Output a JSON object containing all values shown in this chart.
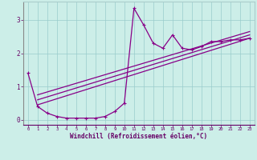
{
  "xlabel": "Windchill (Refroidissement éolien,°C)",
  "background_color": "#cceee8",
  "grid_color": "#99cccc",
  "line_color": "#880088",
  "spine_color": "#666699",
  "x_data": [
    0,
    1,
    2,
    3,
    4,
    5,
    6,
    7,
    8,
    9,
    10,
    11,
    12,
    13,
    14,
    15,
    16,
    17,
    18,
    19,
    20,
    21,
    22,
    23
  ],
  "y_scatter": [
    1.4,
    0.4,
    0.2,
    0.1,
    0.05,
    0.05,
    0.05,
    0.05,
    0.1,
    0.25,
    0.5,
    3.35,
    2.85,
    2.3,
    2.15,
    2.55,
    2.15,
    2.1,
    2.2,
    2.35,
    2.35,
    2.4,
    2.4,
    2.45
  ],
  "ylim": [
    -0.15,
    3.55
  ],
  "xlim": [
    -0.5,
    23.5
  ],
  "yticks": [
    0,
    1,
    2,
    3
  ],
  "xticks": [
    0,
    1,
    2,
    3,
    4,
    5,
    6,
    7,
    8,
    9,
    10,
    11,
    12,
    13,
    14,
    15,
    16,
    17,
    18,
    19,
    20,
    21,
    22,
    23
  ],
  "reg_lines": [
    [
      1.0,
      23.0,
      0.45,
      2.45
    ],
    [
      1.0,
      23.0,
      0.6,
      2.55
    ],
    [
      1.0,
      23.0,
      0.75,
      2.65
    ]
  ],
  "xlabel_color": "#660066",
  "tick_color": "#660066",
  "bottom_bar_color": "#660066"
}
